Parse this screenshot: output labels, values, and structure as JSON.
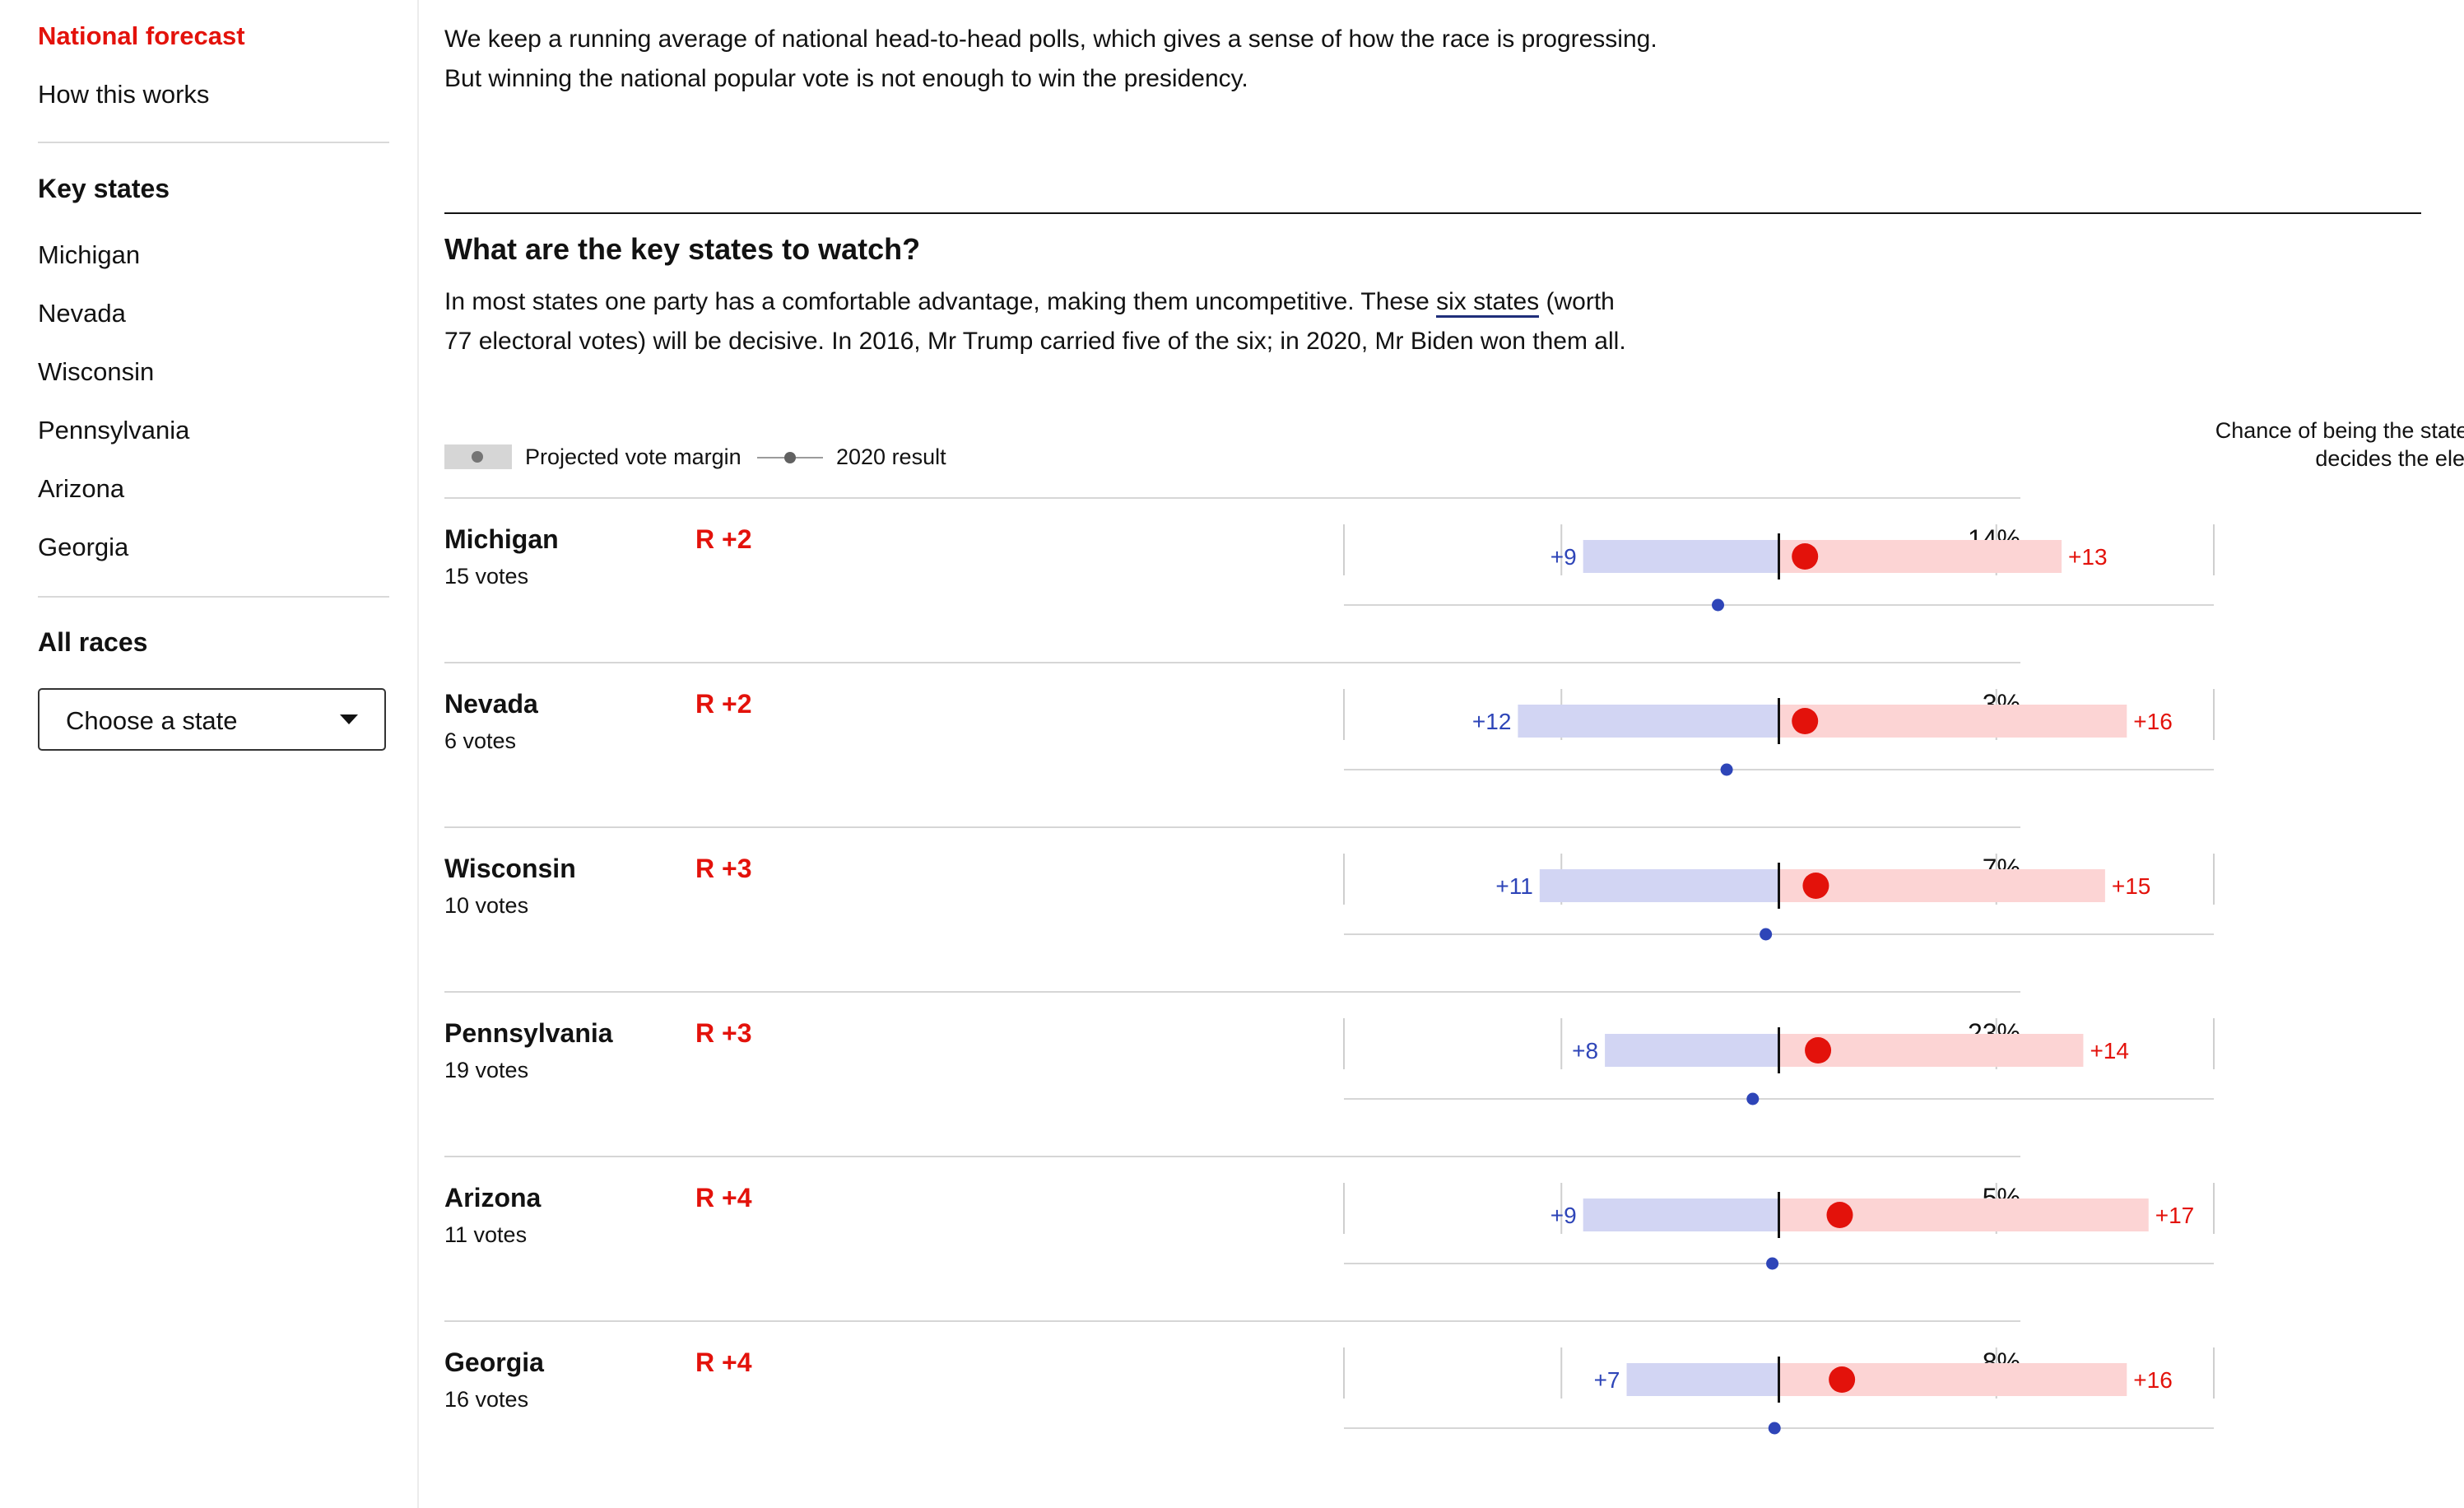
{
  "sidebar": {
    "national_forecast": "National forecast",
    "how_this_works": "How this works",
    "key_states_heading": "Key states",
    "states": [
      "Michigan",
      "Nevada",
      "Wisconsin",
      "Pennsylvania",
      "Arizona",
      "Georgia"
    ],
    "all_races_heading": "All races",
    "select_value": "Choose a state"
  },
  "intro": {
    "line1": "We keep a running average of national head-to-head polls, which gives a sense of how the race is progressing.",
    "line2": "But winning the national popular vote is not enough to win the presidency."
  },
  "section": {
    "title": "What are the key states to watch?",
    "text_before": "In most states one party has a comfortable advantage, making them uncompetitive. These ",
    "link": "six states",
    "text_after": " (worth 77 electoral votes) will be decisive. In 2016, Mr Trump carried five of the six; in 2020, Mr Biden won them all."
  },
  "legend": {
    "projected": "Projected vote margin",
    "result_2020": "2020 result",
    "chance_line1": "Chance of being the state that",
    "chance_line2": "decides the election"
  },
  "colors": {
    "republican": "#e3120b",
    "democrat": "#2e45b8",
    "rep_band": "#fcd4d4",
    "dem_band": "#d2d5f3"
  },
  "chart_data": {
    "type": "range",
    "x_unit": "vote margin, percentage points (negative = Democratic lead)",
    "xlim": [
      -20,
      20
    ],
    "series": [
      {
        "name": "Projected vote margin",
        "kind": "interval-with-point"
      },
      {
        "name": "2020 result",
        "kind": "point"
      }
    ],
    "rows": [
      {
        "state": "Michigan",
        "votes": "15 votes",
        "rating": "R +2",
        "projected": 1.2,
        "low": -9,
        "high": 13,
        "low_label": "+9",
        "high_label": "+13",
        "result_2020": -2.8,
        "chance": "14%"
      },
      {
        "state": "Nevada",
        "votes": "6 votes",
        "rating": "R +2",
        "projected": 1.2,
        "low": -12,
        "high": 16,
        "low_label": "+12",
        "high_label": "+16",
        "result_2020": -2.4,
        "chance": "3%"
      },
      {
        "state": "Wisconsin",
        "votes": "10 votes",
        "rating": "R +3",
        "projected": 1.7,
        "low": -11,
        "high": 15,
        "low_label": "+11",
        "high_label": "+15",
        "result_2020": -0.6,
        "chance": "7%"
      },
      {
        "state": "Pennsylvania",
        "votes": "19 votes",
        "rating": "R +3",
        "projected": 1.8,
        "low": -8,
        "high": 14,
        "low_label": "+8",
        "high_label": "+14",
        "result_2020": -1.2,
        "chance": "23%"
      },
      {
        "state": "Arizona",
        "votes": "11 votes",
        "rating": "R +4",
        "projected": 2.8,
        "low": -9,
        "high": 17,
        "low_label": "+9",
        "high_label": "+17",
        "result_2020": -0.3,
        "chance": "5%"
      },
      {
        "state": "Georgia",
        "votes": "16 votes",
        "rating": "R +4",
        "projected": 2.9,
        "low": -7,
        "high": 16,
        "low_label": "+7",
        "high_label": "+16",
        "result_2020": -0.2,
        "chance": "8%"
      }
    ]
  }
}
